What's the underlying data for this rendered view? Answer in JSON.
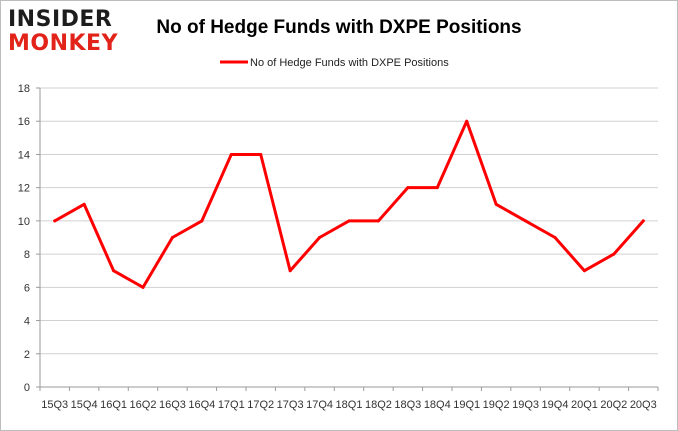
{
  "logo": {
    "line1": "INSIDER",
    "line2": "MONKEY"
  },
  "chart_data": {
    "type": "line",
    "title": "No of Hedge Funds with DXPE Positions",
    "xlabel": "",
    "ylabel": "",
    "categories": [
      "15Q3",
      "15Q4",
      "16Q1",
      "16Q2",
      "16Q3",
      "16Q4",
      "17Q1",
      "17Q2",
      "17Q3",
      "17Q4",
      "18Q1",
      "18Q2",
      "18Q3",
      "18Q4",
      "19Q1",
      "19Q2",
      "19Q3",
      "19Q4",
      "20Q1",
      "20Q2",
      "20Q3"
    ],
    "series": [
      {
        "name": "No of Hedge Funds with DXPE Positions",
        "color": "#ff0000",
        "values": [
          10,
          11,
          7,
          6,
          9,
          10,
          14,
          14,
          7,
          9,
          10,
          10,
          12,
          12,
          16,
          11,
          10,
          9,
          7,
          8,
          10
        ]
      }
    ],
    "ylim": [
      0,
      18
    ],
    "yticks": [
      0,
      2,
      4,
      6,
      8,
      10,
      12,
      14,
      16,
      18
    ],
    "grid": true,
    "legend": "top-center"
  }
}
